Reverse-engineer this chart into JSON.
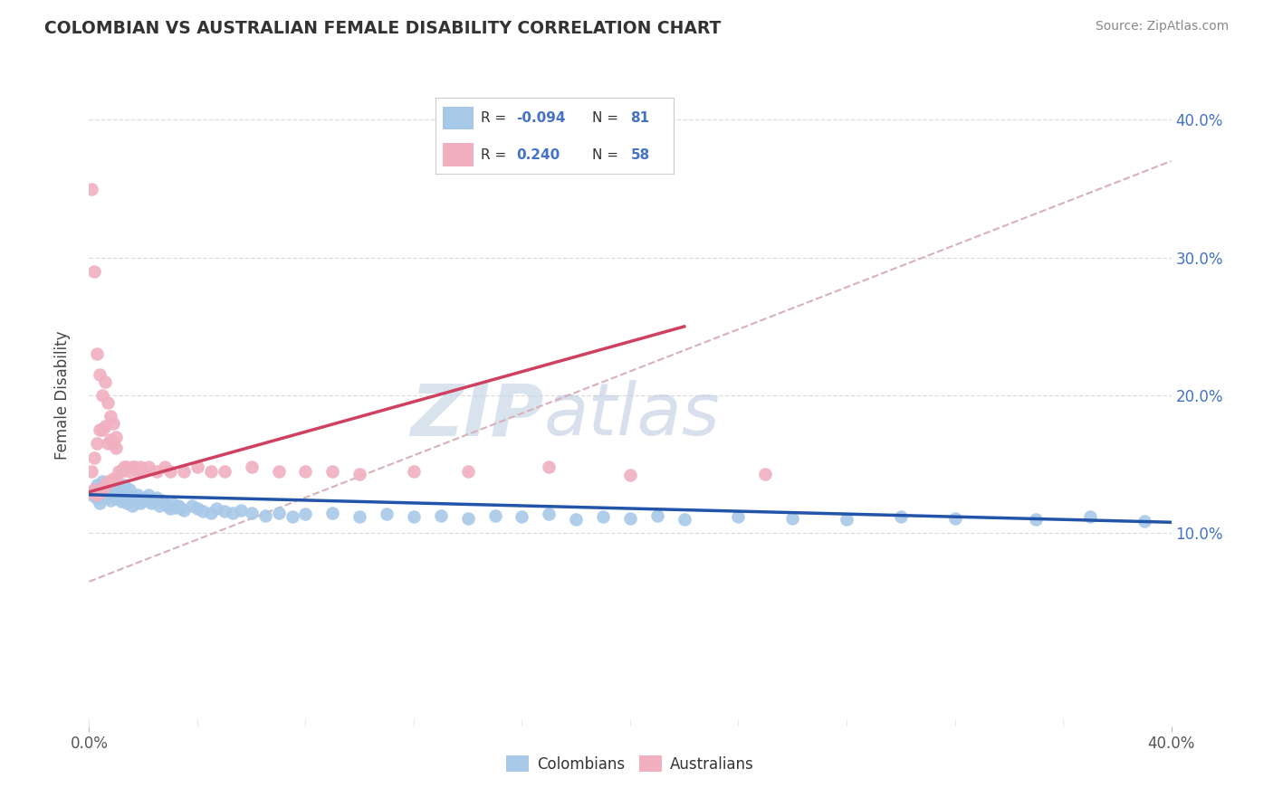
{
  "title": "COLOMBIAN VS AUSTRALIAN FEMALE DISABILITY CORRELATION CHART",
  "source": "Source: ZipAtlas.com",
  "ylabel": "Female Disability",
  "colombian_color": "#a8c8e8",
  "australian_color": "#f0b0c0",
  "colombian_line_color": "#2255aa",
  "australian_line_color": "#d04060",
  "trend_line_color": "#d8b0b8",
  "background_color": "#ffffff",
  "watermark_zip": "ZIP",
  "watermark_atlas": "atlas",
  "grid_color": "#dddddd",
  "right_tick_color": "#4472c4",
  "legend_text_color": "#4472c4",
  "legend_r_label_color": "#222222",
  "col_r": "-0.094",
  "col_n": "81",
  "aus_r": "0.240",
  "aus_n": "58",
  "xlim": [
    0.0,
    0.4
  ],
  "ylim": [
    -0.04,
    0.44
  ],
  "yticks": [
    0.1,
    0.2,
    0.3,
    0.4
  ],
  "ytick_labels": [
    "10.0%",
    "20.0%",
    "30.0%",
    "40.0%"
  ],
  "xtick_left_label": "0.0%",
  "xtick_right_label": "40.0%",
  "col_legend_label": "Colombians",
  "aus_legend_label": "Australians",
  "colombian_x": [
    0.0,
    0.001,
    0.002,
    0.003,
    0.003,
    0.004,
    0.005,
    0.005,
    0.006,
    0.006,
    0.007,
    0.007,
    0.008,
    0.008,
    0.009,
    0.01,
    0.01,
    0.011,
    0.012,
    0.012,
    0.013,
    0.013,
    0.014,
    0.014,
    0.015,
    0.015,
    0.016,
    0.017,
    0.018,
    0.019,
    0.02,
    0.021,
    0.022,
    0.023,
    0.024,
    0.025,
    0.026,
    0.027,
    0.028,
    0.029,
    0.03,
    0.031,
    0.032,
    0.033,
    0.034,
    0.035,
    0.038,
    0.04,
    0.042,
    0.045,
    0.047,
    0.05,
    0.053,
    0.056,
    0.06,
    0.065,
    0.07,
    0.075,
    0.08,
    0.09,
    0.1,
    0.11,
    0.12,
    0.13,
    0.14,
    0.15,
    0.16,
    0.17,
    0.18,
    0.19,
    0.2,
    0.21,
    0.22,
    0.24,
    0.26,
    0.28,
    0.3,
    0.32,
    0.35,
    0.37,
    0.39
  ],
  "colombian_y": [
    0.13,
    0.128,
    0.132,
    0.125,
    0.135,
    0.122,
    0.13,
    0.138,
    0.126,
    0.133,
    0.128,
    0.136,
    0.124,
    0.131,
    0.129,
    0.125,
    0.133,
    0.127,
    0.131,
    0.123,
    0.129,
    0.135,
    0.122,
    0.128,
    0.125,
    0.132,
    0.12,
    0.126,
    0.128,
    0.122,
    0.124,
    0.126,
    0.128,
    0.122,
    0.124,
    0.126,
    0.12,
    0.124,
    0.122,
    0.12,
    0.118,
    0.121,
    0.119,
    0.12,
    0.118,
    0.117,
    0.12,
    0.118,
    0.116,
    0.115,
    0.118,
    0.116,
    0.115,
    0.117,
    0.115,
    0.113,
    0.115,
    0.112,
    0.114,
    0.115,
    0.112,
    0.114,
    0.112,
    0.113,
    0.111,
    0.113,
    0.112,
    0.114,
    0.11,
    0.112,
    0.111,
    0.113,
    0.11,
    0.112,
    0.111,
    0.11,
    0.112,
    0.111,
    0.11,
    0.112,
    0.109
  ],
  "australian_x": [
    0.001,
    0.001,
    0.002,
    0.002,
    0.003,
    0.003,
    0.004,
    0.004,
    0.005,
    0.005,
    0.006,
    0.006,
    0.007,
    0.007,
    0.008,
    0.008,
    0.009,
    0.009,
    0.01,
    0.01,
    0.011,
    0.012,
    0.013,
    0.014,
    0.015,
    0.016,
    0.017,
    0.018,
    0.019,
    0.02,
    0.022,
    0.025,
    0.028,
    0.03,
    0.035,
    0.04,
    0.045,
    0.05,
    0.06,
    0.07,
    0.08,
    0.09,
    0.1,
    0.12,
    0.14,
    0.17,
    0.2,
    0.25,
    0.001,
    0.002,
    0.003,
    0.004,
    0.005,
    0.006,
    0.007,
    0.008,
    0.009,
    0.01
  ],
  "australian_y": [
    0.13,
    0.145,
    0.132,
    0.155,
    0.128,
    0.165,
    0.13,
    0.175,
    0.132,
    0.175,
    0.135,
    0.178,
    0.138,
    0.165,
    0.138,
    0.168,
    0.14,
    0.165,
    0.14,
    0.162,
    0.145,
    0.145,
    0.148,
    0.148,
    0.145,
    0.148,
    0.148,
    0.145,
    0.148,
    0.145,
    0.148,
    0.145,
    0.148,
    0.145,
    0.145,
    0.148,
    0.145,
    0.145,
    0.148,
    0.145,
    0.145,
    0.145,
    0.143,
    0.145,
    0.145,
    0.148,
    0.142,
    0.143,
    0.35,
    0.29,
    0.23,
    0.215,
    0.2,
    0.21,
    0.195,
    0.185,
    0.18,
    0.17
  ],
  "col_line_x": [
    0.0,
    0.4
  ],
  "col_line_y": [
    0.128,
    0.108
  ],
  "aus_line_x": [
    0.0,
    0.22
  ],
  "aus_line_y": [
    0.13,
    0.25
  ],
  "dash_line_x": [
    0.0,
    0.4
  ],
  "dash_line_y": [
    0.065,
    0.37
  ]
}
